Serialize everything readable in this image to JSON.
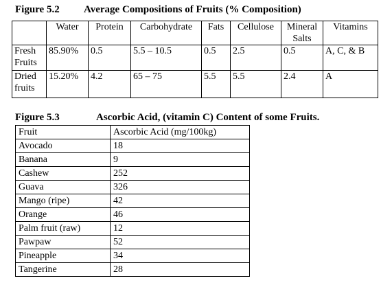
{
  "figure_52": {
    "label": "Figure 5.2",
    "title": "Average Compositions of Fruits (% Composition)",
    "header": [
      "Water",
      "Protein",
      "Carbohydrate",
      "Fats",
      "Cellulose",
      "Mineral Salts",
      "Vitamins"
    ],
    "rows": [
      [
        "Fresh Fruits",
        "85.90%",
        "0.5",
        "5.5 – 10.5",
        "0.5",
        "2.5",
        "0.5",
        "A, C, & B"
      ],
      [
        "Dried fruits",
        "15.20%",
        "4.2",
        "65 – 75",
        "5.5",
        "5.5",
        "2.4",
        "A"
      ]
    ]
  },
  "figure_53": {
    "label": "Figure 5.3",
    "title": "Ascorbic Acid, (vitamin C) Content of some Fruits.",
    "header": [
      "Fruit",
      "Ascorbic Acid (mg/100kg)"
    ],
    "rows": [
      [
        "Avocado",
        "18"
      ],
      [
        "Banana",
        "9"
      ],
      [
        "Cashew",
        "252"
      ],
      [
        "Guava",
        "326"
      ],
      [
        "Mango (ripe)",
        "42"
      ],
      [
        "Orange",
        "46"
      ],
      [
        "Palm fruit (raw)",
        "12"
      ],
      [
        "Pawpaw",
        "52"
      ],
      [
        "Pineapple",
        "34"
      ],
      [
        "Tangerine",
        "28"
      ]
    ]
  }
}
